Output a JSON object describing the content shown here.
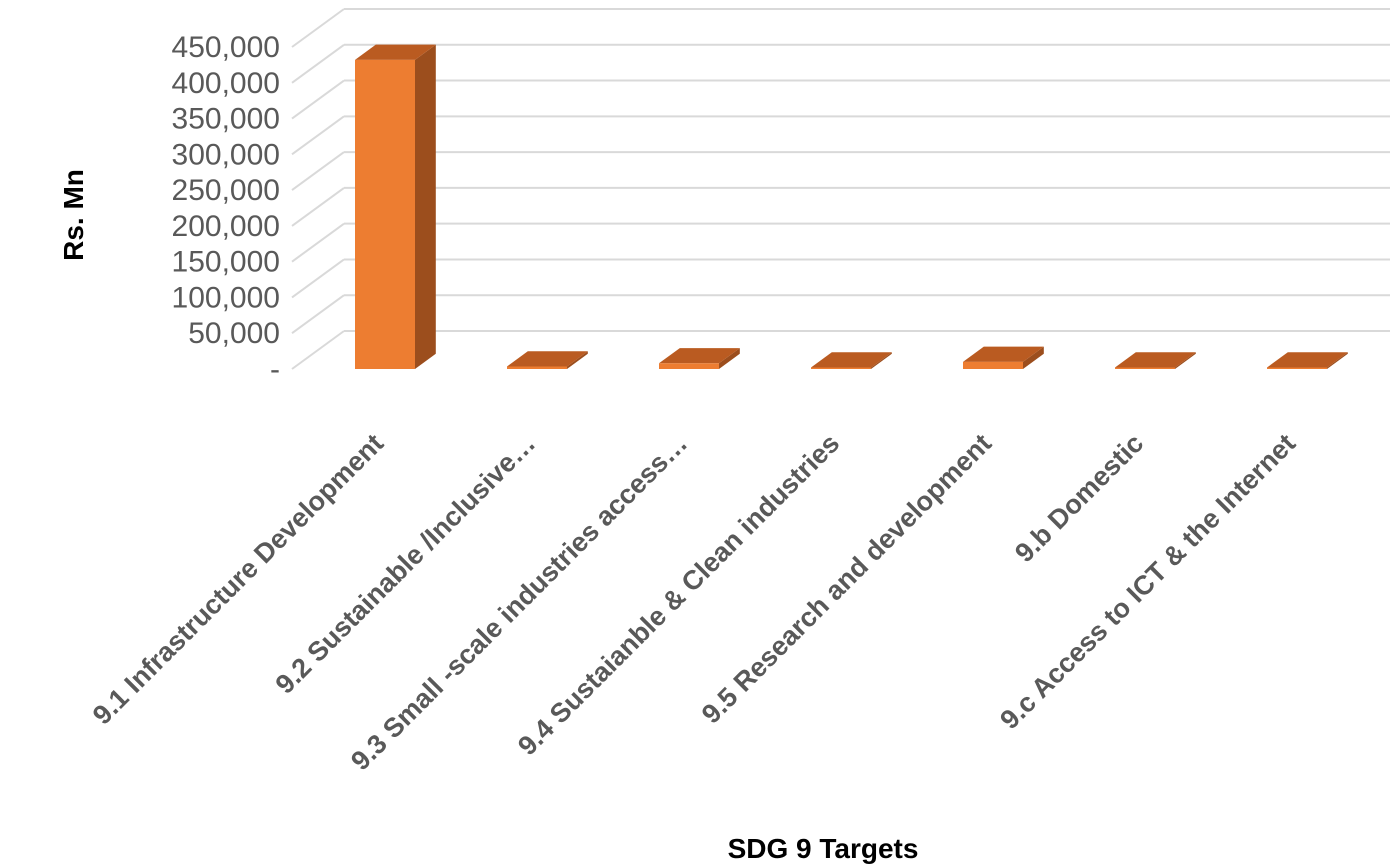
{
  "chart_data": {
    "type": "bar",
    "style": "3d-column",
    "xlabel": "SDG 9 Targets",
    "ylabel": "Rs. Mn",
    "ylim": [
      0,
      450000
    ],
    "y_ticks": [
      "-",
      "50,000",
      "100,000",
      "150,000",
      "200,000",
      "250,000",
      "300,000",
      "350,000",
      "400,000",
      "450,000"
    ],
    "y_tick_values": [
      0,
      50000,
      100000,
      150000,
      200000,
      250000,
      300000,
      350000,
      400000,
      450000
    ],
    "grid": true,
    "legend": "none",
    "categories": [
      "9.1 Infrastructure Development",
      "9.2 Sustainable /Inclusive…",
      "9.3 Small -scale industries access…",
      "9.4 Sustaianble & Clean industries",
      "9.5 Research and development",
      "9.b Domestic",
      "9.c Access to ICT & the Internet"
    ],
    "values": [
      432000,
      3500,
      8000,
      1000,
      10000,
      500,
      500
    ],
    "colors": {
      "front": "#ED7D31",
      "side": "#9C4E1D",
      "top": "#BA5B21",
      "grid": "#D9D9D9"
    }
  }
}
